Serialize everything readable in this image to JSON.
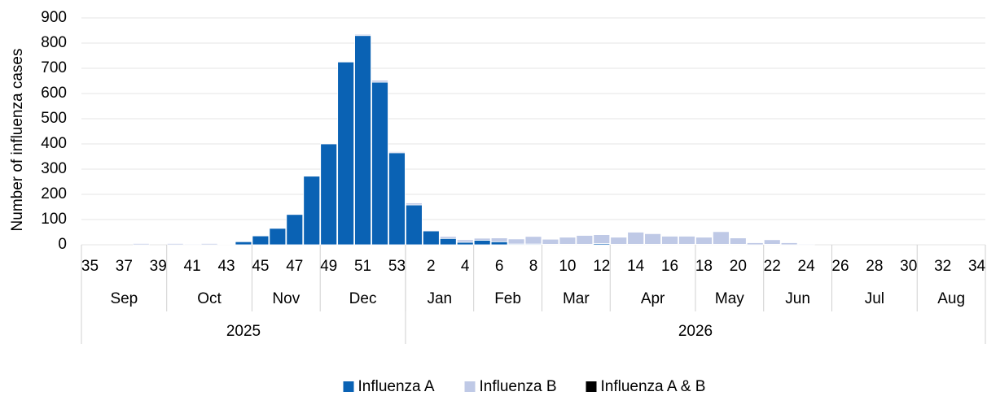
{
  "chart_data": {
    "type": "bar",
    "stacked": true,
    "y_label": "Number of influenza cases",
    "categories": [
      "35",
      null,
      "37",
      null,
      "39",
      null,
      "41",
      null,
      "43",
      null,
      "45",
      null,
      "47",
      null,
      "49",
      null,
      "51",
      null,
      "53",
      null,
      "2",
      null,
      "4",
      null,
      "6",
      null,
      "8",
      null,
      "10",
      null,
      "12",
      null,
      "14",
      null,
      "16",
      null,
      "18",
      null,
      "20",
      null,
      "22",
      null,
      "24",
      null,
      "26",
      null,
      "28",
      null,
      "30",
      null,
      "32",
      null,
      "34"
    ],
    "months": [
      {
        "label": "Sep",
        "span": 5
      },
      {
        "label": "Oct",
        "span": 5
      },
      {
        "label": "Nov",
        "span": 4
      },
      {
        "label": "Dec",
        "span": 5
      },
      {
        "label": "Jan",
        "span": 4
      },
      {
        "label": "Feb",
        "span": 4
      },
      {
        "label": "Mar",
        "span": 4
      },
      {
        "label": "Apr",
        "span": 5
      },
      {
        "label": "May",
        "span": 4
      },
      {
        "label": "Jun",
        "span": 4
      },
      {
        "label": "Jul",
        "span": 5
      },
      {
        "label": "Aug",
        "span": 4
      }
    ],
    "years": [
      {
        "label": "2025",
        "span": 19
      },
      {
        "label": "2026",
        "span": 34
      }
    ],
    "series": [
      {
        "name": "Influenza A",
        "color": "#0a62b4",
        "values": [
          0,
          0,
          0,
          0,
          0,
          0,
          0,
          0,
          2,
          12,
          35,
          65,
          120,
          272,
          400,
          725,
          830,
          645,
          365,
          158,
          55,
          25,
          10,
          18,
          12,
          3,
          3,
          2,
          2,
          2,
          5,
          2,
          2,
          2,
          2,
          2,
          2,
          2,
          2,
          0,
          2,
          0,
          0,
          0,
          0,
          0,
          0,
          0,
          0,
          0,
          0,
          0,
          0
        ]
      },
      {
        "name": "Influenza B",
        "color": "#bfc9e6",
        "values": [
          0,
          0,
          0,
          5,
          0,
          5,
          3,
          5,
          0,
          0,
          0,
          0,
          0,
          0,
          0,
          0,
          5,
          8,
          5,
          8,
          3,
          8,
          10,
          8,
          15,
          20,
          30,
          20,
          28,
          35,
          35,
          28,
          48,
          42,
          32,
          32,
          28,
          50,
          25,
          8,
          18,
          8,
          3,
          0,
          0,
          0,
          0,
          0,
          0,
          0,
          0,
          0,
          0
        ]
      },
      {
        "name": "Influenza A & B",
        "color": "#000000",
        "values": [
          0,
          0,
          0,
          0,
          0,
          0,
          0,
          0,
          0,
          0,
          0,
          0,
          0,
          0,
          0,
          0,
          1,
          1,
          1,
          1,
          0,
          0,
          0,
          0,
          0,
          0,
          0,
          0,
          0,
          0,
          0,
          0,
          0,
          0,
          0,
          0,
          0,
          0,
          0,
          0,
          0,
          0,
          0,
          0,
          0,
          0,
          0,
          0,
          0,
          0,
          0,
          0,
          0
        ]
      }
    ],
    "ylim": [
      0,
      900
    ],
    "yticks": [
      0,
      100,
      200,
      300,
      400,
      500,
      600,
      700,
      800,
      900
    ],
    "grid": true
  }
}
